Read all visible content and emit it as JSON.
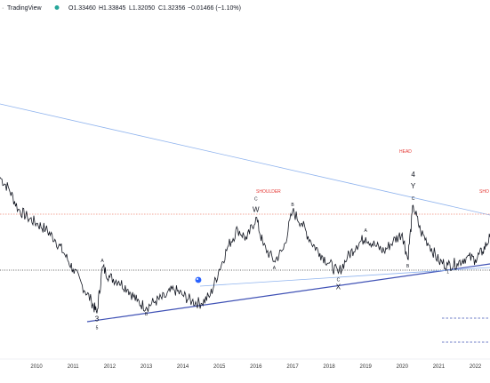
{
  "header": {
    "app_name": "TradingView",
    "ohlc": {
      "open": "O1.33460",
      "high": "H1.33845",
      "low": "L1.32050",
      "close": "C1.32356",
      "change": "−0.01466 (−1.10%)"
    }
  },
  "colors": {
    "price_line": "#131722",
    "trend_blue_dark": "#3f51b5",
    "trend_blue_light": "#90b4ee",
    "resistance_red": "#f08a7a",
    "support_black": "#333333",
    "dashed_blue": "#3f51b5",
    "annotation_red": "#e53935",
    "status_dot": "#26a69a",
    "marker_blue": "#2962ff"
  },
  "chart_data": {
    "type": "line",
    "title": "",
    "xlabel": "",
    "ylabel": "",
    "x_ticks": [
      "2010",
      "2011",
      "2012",
      "2013",
      "2014",
      "2015",
      "2016",
      "2017",
      "2018",
      "2019",
      "2020",
      "2021",
      "2022"
    ],
    "x_range": [
      2009.0,
      2022.4
    ],
    "series": [
      {
        "values_as": "relative_level_0_to_100",
        "points": [
          [
            2009.0,
            78
          ],
          [
            2009.25,
            72
          ],
          [
            2009.5,
            62
          ],
          [
            2009.75,
            58
          ],
          [
            2010.0,
            55
          ],
          [
            2010.25,
            52
          ],
          [
            2010.5,
            47
          ],
          [
            2010.75,
            40
          ],
          [
            2011.0,
            32
          ],
          [
            2011.25,
            24
          ],
          [
            2011.5,
            16
          ],
          [
            2011.65,
            10
          ],
          [
            2011.8,
            33
          ],
          [
            2012.0,
            28
          ],
          [
            2012.25,
            26
          ],
          [
            2012.5,
            22
          ],
          [
            2012.75,
            16
          ],
          [
            2013.0,
            13
          ],
          [
            2013.25,
            16
          ],
          [
            2013.5,
            18
          ],
          [
            2013.75,
            22
          ],
          [
            2014.0,
            19
          ],
          [
            2014.25,
            16
          ],
          [
            2014.5,
            15
          ],
          [
            2014.75,
            19
          ],
          [
            2015.0,
            32
          ],
          [
            2015.25,
            44
          ],
          [
            2015.5,
            52
          ],
          [
            2015.75,
            47
          ],
          [
            2016.0,
            58
          ],
          [
            2016.2,
            44
          ],
          [
            2016.5,
            36
          ],
          [
            2016.75,
            42
          ],
          [
            2017.0,
            61
          ],
          [
            2017.25,
            55
          ],
          [
            2017.5,
            46
          ],
          [
            2017.75,
            40
          ],
          [
            2018.0,
            35
          ],
          [
            2018.25,
            30
          ],
          [
            2018.5,
            38
          ],
          [
            2018.75,
            44
          ],
          [
            2019.0,
            48
          ],
          [
            2019.25,
            44
          ],
          [
            2019.5,
            41
          ],
          [
            2019.75,
            46
          ],
          [
            2020.0,
            50
          ],
          [
            2020.15,
            37
          ],
          [
            2020.3,
            64
          ],
          [
            2020.5,
            51
          ],
          [
            2020.75,
            44
          ],
          [
            2021.0,
            36
          ],
          [
            2021.25,
            34
          ],
          [
            2021.5,
            35
          ],
          [
            2021.75,
            38
          ],
          [
            2022.0,
            37
          ],
          [
            2022.2,
            41
          ],
          [
            2022.4,
            48
          ]
        ]
      }
    ],
    "annotations": [
      {
        "label": "3",
        "x": 2011.65,
        "level": 10,
        "position": "below",
        "size": "large"
      },
      {
        "label": "5",
        "x": 2011.65,
        "level": 10,
        "position": "below",
        "size": "small"
      },
      {
        "label": "A",
        "x": 2011.8,
        "level": 33,
        "position": "above",
        "size": "small"
      },
      {
        "label": "B",
        "x": 2013.0,
        "level": 13,
        "position": "below",
        "size": "small"
      },
      {
        "label": "W",
        "x": 2016.0,
        "level": 58,
        "position": "above",
        "size": "large"
      },
      {
        "label": "C",
        "x": 2016.0,
        "level": 58,
        "position": "above",
        "size": "small"
      },
      {
        "label": "A",
        "x": 2016.5,
        "level": 36,
        "position": "below",
        "size": "small"
      },
      {
        "label": "B",
        "x": 2017.0,
        "level": 61,
        "position": "above",
        "size": "small"
      },
      {
        "label": "C",
        "x": 2018.25,
        "level": 30,
        "position": "below",
        "size": "small"
      },
      {
        "label": "X",
        "x": 2018.25,
        "level": 30,
        "position": "below",
        "size": "large"
      },
      {
        "label": "A",
        "x": 2019.0,
        "level": 48,
        "position": "above",
        "size": "small"
      },
      {
        "label": "B",
        "x": 2020.15,
        "level": 37,
        "position": "below",
        "size": "small"
      },
      {
        "label": "C",
        "x": 2020.3,
        "level": 64,
        "position": "above",
        "size": "small"
      },
      {
        "label": "Y",
        "x": 2020.3,
        "level": 64,
        "position": "above",
        "size": "large"
      },
      {
        "label": "4",
        "x": 2020.3,
        "level": 64,
        "position": "above",
        "size": "large"
      },
      {
        "label": "1",
        "x": 2021.25,
        "level": 34,
        "position": "below",
        "size": "small"
      }
    ],
    "text_labels": {
      "shoulder_left": "SHOULDER",
      "head": "HEAD",
      "shoulder_right": "SHO"
    },
    "grid": false,
    "legend": "none"
  }
}
